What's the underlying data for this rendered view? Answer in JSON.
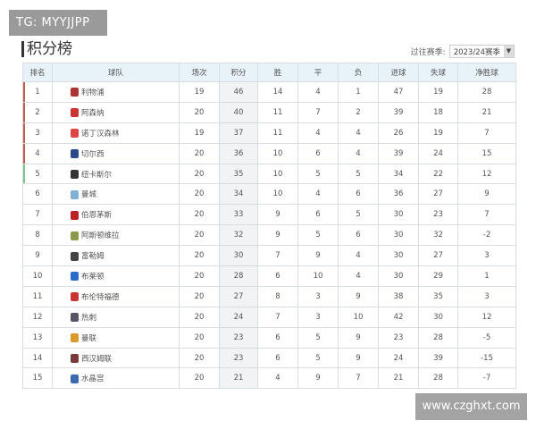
{
  "watermarks": {
    "top_left": "TG: MYYJJPP",
    "bottom_right": "www.czghxt.com"
  },
  "title": "积分榜",
  "season": {
    "label": "过往赛季:",
    "value": "2023/24赛季"
  },
  "columns": [
    "排名",
    "球队",
    "场次",
    "积分",
    "胜",
    "平",
    "负",
    "进球",
    "失球",
    "净胜球"
  ],
  "marker_colors": {
    "champions": "#c45a50",
    "europa": "#7dc38a"
  },
  "rows": [
    {
      "rank": "1",
      "team": "利物浦",
      "badge": "#a33",
      "p": "19",
      "pts": "46",
      "w": "14",
      "d": "4",
      "l": "1",
      "gf": "47",
      "ga": "19",
      "gd": "28",
      "marker": "red"
    },
    {
      "rank": "2",
      "team": "阿森纳",
      "badge": "#c33",
      "p": "20",
      "pts": "40",
      "w": "11",
      "d": "7",
      "l": "2",
      "gf": "39",
      "ga": "18",
      "gd": "21",
      "marker": "red"
    },
    {
      "rank": "3",
      "team": "诺丁汉森林",
      "badge": "#d44",
      "p": "19",
      "pts": "37",
      "w": "11",
      "d": "4",
      "l": "4",
      "gf": "26",
      "ga": "19",
      "gd": "7",
      "marker": "red"
    },
    {
      "rank": "4",
      "team": "切尔西",
      "badge": "#2a4a8a",
      "p": "20",
      "pts": "36",
      "w": "10",
      "d": "6",
      "l": "4",
      "gf": "39",
      "ga": "24",
      "gd": "15",
      "marker": "red"
    },
    {
      "rank": "5",
      "team": "纽卡斯尔",
      "badge": "#333",
      "p": "20",
      "pts": "35",
      "w": "10",
      "d": "5",
      "l": "5",
      "gf": "34",
      "ga": "22",
      "gd": "12",
      "marker": "green"
    },
    {
      "rank": "6",
      "team": "曼城",
      "badge": "#7fb0d8",
      "p": "20",
      "pts": "34",
      "w": "10",
      "d": "4",
      "l": "6",
      "gf": "36",
      "ga": "27",
      "gd": "9",
      "marker": ""
    },
    {
      "rank": "7",
      "team": "伯恩茅斯",
      "badge": "#b22",
      "p": "20",
      "pts": "33",
      "w": "9",
      "d": "6",
      "l": "5",
      "gf": "30",
      "ga": "23",
      "gd": "7",
      "marker": ""
    },
    {
      "rank": "8",
      "team": "阿斯顿维拉",
      "badge": "#8a9a4a",
      "p": "20",
      "pts": "32",
      "w": "9",
      "d": "5",
      "l": "6",
      "gf": "30",
      "ga": "32",
      "gd": "-2",
      "marker": ""
    },
    {
      "rank": "9",
      "team": "富勒姆",
      "badge": "#444",
      "p": "20",
      "pts": "30",
      "w": "7",
      "d": "9",
      "l": "4",
      "gf": "30",
      "ga": "27",
      "gd": "3",
      "marker": ""
    },
    {
      "rank": "10",
      "team": "布莱顿",
      "badge": "#2a6ac8",
      "p": "20",
      "pts": "28",
      "w": "6",
      "d": "10",
      "l": "4",
      "gf": "30",
      "ga": "29",
      "gd": "1",
      "marker": ""
    },
    {
      "rank": "11",
      "team": "布伦特福德",
      "badge": "#c33",
      "p": "20",
      "pts": "27",
      "w": "8",
      "d": "3",
      "l": "9",
      "gf": "38",
      "ga": "35",
      "gd": "3",
      "marker": ""
    },
    {
      "rank": "12",
      "team": "热刺",
      "badge": "#556",
      "p": "20",
      "pts": "24",
      "w": "7",
      "d": "3",
      "l": "10",
      "gf": "42",
      "ga": "30",
      "gd": "12",
      "marker": ""
    },
    {
      "rank": "13",
      "team": "曼联",
      "badge": "#d89a2a",
      "p": "20",
      "pts": "23",
      "w": "6",
      "d": "5",
      "l": "9",
      "gf": "23",
      "ga": "28",
      "gd": "-5",
      "marker": ""
    },
    {
      "rank": "14",
      "team": "西汉姆联",
      "badge": "#7a3a3a",
      "p": "20",
      "pts": "23",
      "w": "6",
      "d": "5",
      "l": "9",
      "gf": "24",
      "ga": "39",
      "gd": "-15",
      "marker": ""
    },
    {
      "rank": "15",
      "team": "水晶宫",
      "badge": "#3a6ab0",
      "p": "20",
      "pts": "21",
      "w": "4",
      "d": "9",
      "l": "7",
      "gf": "21",
      "ga": "28",
      "gd": "-7",
      "marker": ""
    }
  ]
}
